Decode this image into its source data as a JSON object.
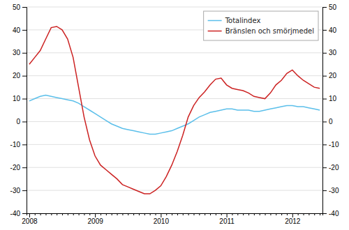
{
  "chart_data": {
    "type": "line",
    "categories": [
      "2008",
      null,
      null,
      null,
      null,
      null,
      null,
      null,
      null,
      null,
      null,
      null,
      "2009",
      null,
      null,
      null,
      null,
      null,
      null,
      null,
      null,
      null,
      null,
      null,
      "2010",
      null,
      null,
      null,
      null,
      null,
      null,
      null,
      null,
      null,
      null,
      null,
      "2011",
      null,
      null,
      null,
      null,
      null,
      null,
      null,
      null,
      null,
      null,
      null,
      "2012",
      null,
      null,
      null,
      null,
      null
    ],
    "series": [
      {
        "name": "Totalindex",
        "color": "#5bbfea",
        "values": [
          9.0,
          10.0,
          11.0,
          11.5,
          11.0,
          10.5,
          10.0,
          9.5,
          9.0,
          8.0,
          6.5,
          5.0,
          3.5,
          2.0,
          0.5,
          -1.0,
          -2.0,
          -3.0,
          -3.5,
          -4.0,
          -4.5,
          -5.0,
          -5.5,
          -5.5,
          -5.0,
          -4.5,
          -4.0,
          -3.0,
          -2.0,
          -1.0,
          0.5,
          2.0,
          3.0,
          4.0,
          4.5,
          5.0,
          5.5,
          5.5,
          5.0,
          5.0,
          5.0,
          4.5,
          4.5,
          5.0,
          5.5,
          6.0,
          6.5,
          7.0,
          7.0,
          6.5,
          6.5,
          6.0,
          5.5,
          5.0
        ]
      },
      {
        "name": "Bränslen och smörjmedel",
        "color": "#cc2222",
        "values": [
          25.0,
          28.0,
          31.0,
          36.0,
          41.0,
          41.5,
          40.0,
          36.0,
          28.0,
          15.0,
          2.0,
          -8.0,
          -15.0,
          -19.0,
          -21.0,
          -23.0,
          -25.0,
          -27.5,
          -28.5,
          -29.5,
          -30.5,
          -31.5,
          -31.5,
          -30.0,
          -28.0,
          -24.0,
          -19.0,
          -13.0,
          -6.0,
          2.0,
          7.0,
          10.5,
          13.0,
          16.0,
          18.5,
          19.0,
          16.0,
          14.5,
          14.0,
          13.5,
          12.5,
          11.0,
          10.5,
          10.0,
          12.5,
          16.0,
          18.0,
          21.0,
          22.5,
          20.0,
          18.0,
          16.5,
          15.0,
          14.5
        ]
      }
    ],
    "ylim": [
      -40,
      50
    ],
    "yticks": [
      -40,
      -30,
      -20,
      -10,
      0,
      10,
      20,
      30,
      40,
      50
    ],
    "y2lim": [
      -40,
      50
    ],
    "y2ticks": [
      -40,
      -30,
      -20,
      -10,
      0,
      10,
      20,
      30,
      40,
      50
    ],
    "grid": true,
    "legend": "upper right"
  }
}
